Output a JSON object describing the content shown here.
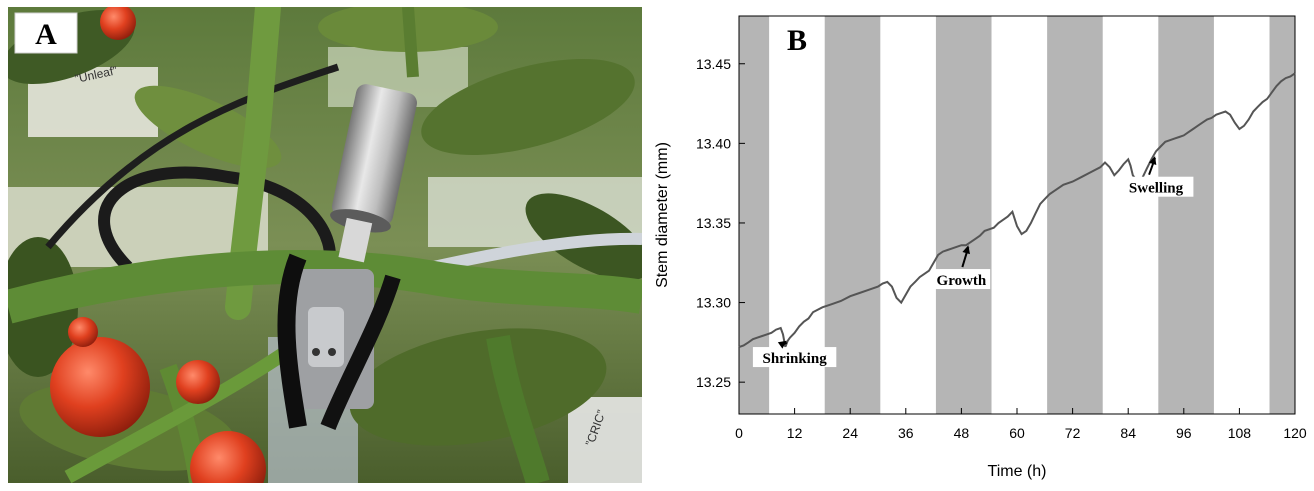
{
  "panel_a": {
    "label": "A",
    "photo_labels": [
      "”Unleaf”",
      "”CRIC”"
    ]
  },
  "chart_data": {
    "type": "line",
    "panel_label": "B",
    "title": "",
    "xlabel": "Time (h)",
    "ylabel": "Stem diameter (mm)",
    "xlim": [
      0,
      120
    ],
    "ylim": [
      13.23,
      13.48
    ],
    "xticks": [
      0,
      12,
      24,
      36,
      48,
      60,
      72,
      84,
      96,
      108,
      120
    ],
    "yticks": [
      13.25,
      13.3,
      13.35,
      13.4,
      13.45
    ],
    "grid": false,
    "legend": "none",
    "night_bands": [
      [
        0,
        6.5
      ],
      [
        18.5,
        30.5
      ],
      [
        42.5,
        54.5
      ],
      [
        66.5,
        78.5
      ],
      [
        90.5,
        102.5
      ],
      [
        114.5,
        120
      ]
    ],
    "colors": {
      "line": "#555555",
      "night_band": "#b5b5b5",
      "day": "#ffffff"
    },
    "series": [
      {
        "x": [
          0,
          1,
          2,
          3,
          4,
          5,
          6,
          7,
          8,
          9,
          9.5,
          10,
          10.5,
          11,
          12,
          13,
          14,
          15,
          16,
          18,
          20,
          22,
          24,
          26,
          28,
          30,
          31,
          32,
          33,
          34,
          35,
          36,
          37,
          38,
          39,
          40,
          41,
          42,
          43,
          44,
          45,
          46,
          47,
          48,
          49,
          50,
          51,
          52,
          53,
          54,
          55,
          56,
          57,
          58,
          59,
          60,
          61,
          62,
          63,
          64,
          65,
          66,
          67,
          68,
          70,
          72,
          74,
          76,
          78,
          79,
          80,
          81,
          82,
          83,
          84,
          84.5,
          85,
          86,
          87,
          88,
          89,
          90,
          91,
          92,
          93,
          94,
          95,
          96,
          97,
          98,
          99,
          100,
          101,
          102,
          103,
          104,
          105,
          106,
          107,
          108,
          109,
          110,
          111,
          112,
          113,
          114,
          115,
          116,
          117,
          118,
          119,
          120
        ],
        "values": [
          13.272,
          13.273,
          13.275,
          13.277,
          13.278,
          13.279,
          13.28,
          13.281,
          13.283,
          13.284,
          13.28,
          13.272,
          13.276,
          13.278,
          13.281,
          13.285,
          13.288,
          13.29,
          13.294,
          13.297,
          13.299,
          13.301,
          13.304,
          13.306,
          13.308,
          13.31,
          13.312,
          13.313,
          13.31,
          13.303,
          13.3,
          13.305,
          13.31,
          13.313,
          13.316,
          13.318,
          13.32,
          13.325,
          13.33,
          13.332,
          13.333,
          13.334,
          13.335,
          13.336,
          13.336,
          13.338,
          13.34,
          13.342,
          13.345,
          13.346,
          13.347,
          13.35,
          13.352,
          13.354,
          13.357,
          13.348,
          13.343,
          13.345,
          13.35,
          13.356,
          13.362,
          13.365,
          13.368,
          13.37,
          13.374,
          13.376,
          13.379,
          13.382,
          13.385,
          13.388,
          13.385,
          13.38,
          13.383,
          13.387,
          13.39,
          13.386,
          13.38,
          13.376,
          13.378,
          13.384,
          13.39,
          13.395,
          13.398,
          13.401,
          13.402,
          13.403,
          13.404,
          13.405,
          13.407,
          13.409,
          13.411,
          13.413,
          13.415,
          13.416,
          13.418,
          13.419,
          13.42,
          13.418,
          13.413,
          13.409,
          13.411,
          13.415,
          13.42,
          13.423,
          13.426,
          13.428,
          13.432,
          13.436,
          13.439,
          13.441,
          13.442,
          13.444
        ]
      }
    ],
    "annotations": [
      {
        "text": "Shrinking",
        "x": 12,
        "y": 13.262,
        "arrow_to": [
          10.3,
          13.276
        ]
      },
      {
        "text": "Growth",
        "x": 48,
        "y": 13.311,
        "arrow_to": [
          49.5,
          13.336
        ]
      },
      {
        "text": "Swelling",
        "x": 90,
        "y": 13.369,
        "arrow_to": [
          89.8,
          13.392
        ]
      }
    ]
  }
}
